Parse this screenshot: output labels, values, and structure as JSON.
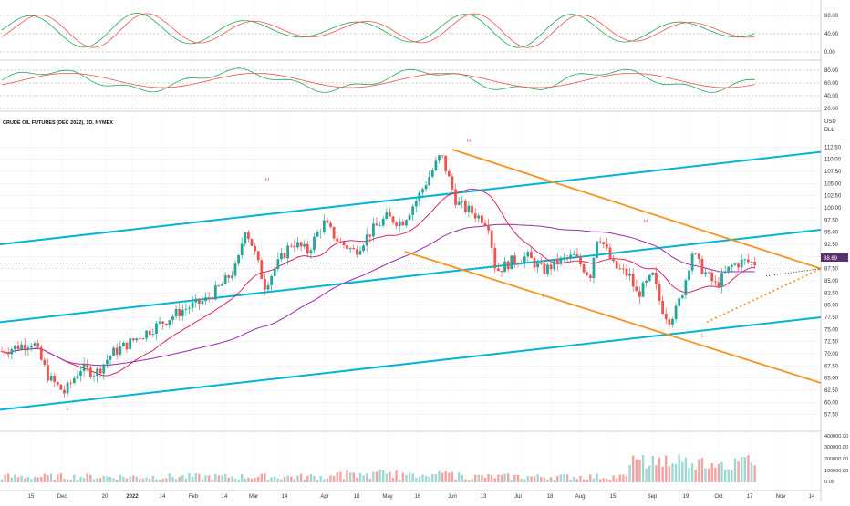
{
  "title": "CRUDE OIL FUTURES (DEC 2022), 1D, NYMEX",
  "currency": "USD",
  "unit": "BLL",
  "last_price_label": "88.69",
  "colors": {
    "up": "#26a69a",
    "down": "#ef5350",
    "channel": "#00b4d8",
    "wedge": "#f7931e",
    "ma_fast": "#e0245e",
    "ma_slow": "#9c27b0",
    "osc_k": "#26a65b",
    "osc_d": "#ef5350",
    "marker": "#ef5350",
    "grid": "#e8e8e8",
    "axis_text": "#333333"
  },
  "chart_data": {
    "type": "candlestick",
    "title": "CRUDE OIL FUTURES (DEC 2022), 1D, NYMEX",
    "ylabel": "USD BLL",
    "ylim": [
      55,
      115
    ],
    "price_ticks": [
      57.5,
      60,
      62.5,
      65,
      67.5,
      70,
      72.5,
      75,
      77.5,
      80,
      82.5,
      85,
      87.5,
      90,
      92.5,
      95,
      97.5,
      100,
      102.5,
      105,
      107.5,
      110,
      112.5
    ],
    "x_ticks": [
      "15",
      "Dec",
      "20",
      "2022",
      "14",
      "Feb",
      "14",
      "Mar",
      "14",
      "Apr",
      "18",
      "May",
      "16",
      "Jun",
      "13",
      "Jul",
      "18",
      "Aug",
      "15",
      "Sep",
      "19",
      "Oct",
      "17",
      "Nov",
      "14"
    ],
    "osc1_ticks": [
      "80.00",
      "40.00",
      "0.00"
    ],
    "osc2_ticks": [
      "80.00",
      "60.00",
      "40.00",
      "20.00"
    ],
    "volume_ticks": [
      "400000.00",
      "300000.00",
      "200000.00",
      "100000.00",
      "0.00"
    ],
    "price_path": [
      [
        0,
        70.5
      ],
      [
        0.04,
        72.5
      ],
      [
        0.06,
        65
      ],
      [
        0.08,
        62
      ],
      [
        0.1,
        67
      ],
      [
        0.12,
        66
      ],
      [
        0.14,
        70
      ],
      [
        0.17,
        73
      ],
      [
        0.2,
        76
      ],
      [
        0.23,
        79
      ],
      [
        0.26,
        81
      ],
      [
        0.28,
        84
      ],
      [
        0.3,
        88
      ],
      [
        0.31,
        96
      ],
      [
        0.32,
        92
      ],
      [
        0.335,
        84
      ],
      [
        0.35,
        88
      ],
      [
        0.37,
        93
      ],
      [
        0.39,
        91
      ],
      [
        0.41,
        97
      ],
      [
        0.43,
        93
      ],
      [
        0.45,
        91
      ],
      [
        0.47,
        95
      ],
      [
        0.49,
        98
      ],
      [
        0.51,
        97
      ],
      [
        0.53,
        102
      ],
      [
        0.55,
        108
      ],
      [
        0.56,
        111
      ],
      [
        0.57,
        106
      ],
      [
        0.58,
        101
      ],
      [
        0.6,
        99
      ],
      [
        0.62,
        97
      ],
      [
        0.63,
        87
      ],
      [
        0.65,
        89
      ],
      [
        0.67,
        90
      ],
      [
        0.69,
        87
      ],
      [
        0.71,
        89
      ],
      [
        0.73,
        90
      ],
      [
        0.75,
        86
      ],
      [
        0.76,
        95
      ],
      [
        0.78,
        88
      ],
      [
        0.8,
        86
      ],
      [
        0.81,
        82
      ],
      [
        0.83,
        86
      ],
      [
        0.84,
        80
      ],
      [
        0.85,
        77
      ],
      [
        0.86,
        79
      ],
      [
        0.87,
        84
      ],
      [
        0.88,
        91
      ],
      [
        0.89,
        88
      ],
      [
        0.9,
        86
      ],
      [
        0.91,
        84
      ],
      [
        0.92,
        86
      ],
      [
        0.93,
        88
      ],
      [
        0.945,
        89
      ],
      [
        0.96,
        88.7
      ]
    ],
    "marker_labels": [
      "H",
      "H",
      "H",
      "L",
      "L",
      "L"
    ],
    "volume_range": [
      0,
      400000
    ],
    "grid": true
  }
}
